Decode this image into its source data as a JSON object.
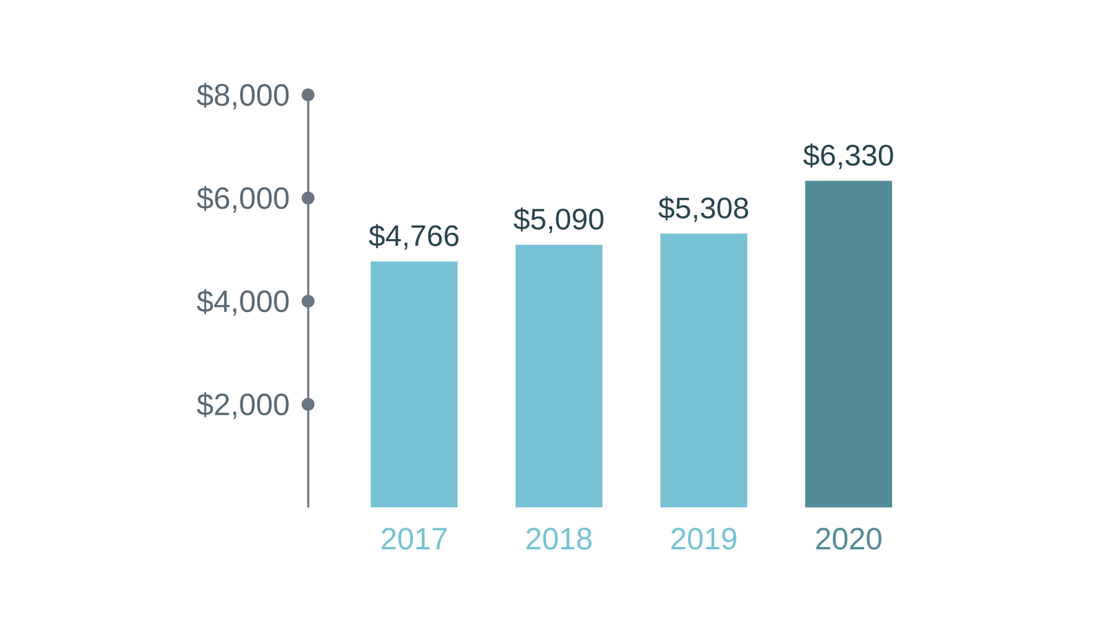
{
  "chart_data": {
    "type": "bar",
    "categories": [
      "2017",
      "2018",
      "2019",
      "2020"
    ],
    "values": [
      4766,
      5090,
      5308,
      6330
    ],
    "value_labels": [
      "$4,766",
      "$5,090",
      "$5,308",
      "$6,330"
    ],
    "data_labels": true,
    "colors": [
      "#77c2d4",
      "#77c2d4",
      "#77c2d4",
      "#548b97"
    ],
    "ylim": [
      0,
      8000
    ],
    "yticks": [
      {
        "value": 2000,
        "label": "$2,000"
      },
      {
        "value": 4000,
        "label": "$4,000"
      },
      {
        "value": 6000,
        "label": "$6,000"
      },
      {
        "value": 8000,
        "label": "$8,000"
      }
    ],
    "grid": false
  }
}
